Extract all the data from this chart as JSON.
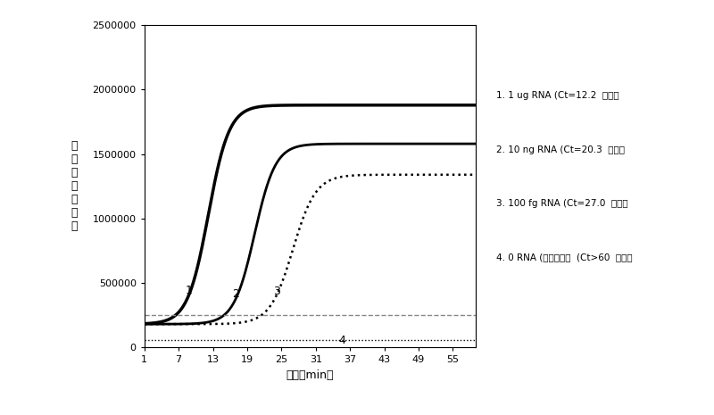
{
  "x_ticks": [
    1,
    7,
    13,
    19,
    25,
    31,
    37,
    43,
    49,
    55
  ],
  "x_min": 1,
  "x_max": 59,
  "y_min": 0,
  "y_max": 2500000,
  "y_ticks": [
    0,
    500000,
    1000000,
    1500000,
    2000000,
    2500000
  ],
  "ylabel": "相\n对\n荧\n光\n吸\n收\n值",
  "xlabel": "时间（min）",
  "legend": [
    "1. 1 ug RNA (Ct=12.2  分钟）",
    "2. 10 ng RNA (Ct=20.3  分钟）",
    "3. 100 fg RNA (Ct=27.0  分钟）",
    "4. 0 RNA (阴性对照）  (Ct>60  分钟）"
  ],
  "curve1_ct": 12.2,
  "curve1_baseline": 180000,
  "curve1_plateau": 1880000,
  "curve1_k": 0.55,
  "curve2_ct": 20.3,
  "curve2_baseline": 180000,
  "curve2_plateau": 1580000,
  "curve2_k": 0.55,
  "curve3_ct": 27.0,
  "curve3_baseline": 180000,
  "curve3_plateau": 1340000,
  "curve3_k": 0.5,
  "curve4_baseline": 60000,
  "threshold_y": 250000,
  "bg_color": "#ffffff",
  "curve1_color": "#000000",
  "curve2_color": "#000000",
  "curve3_color": "#000000",
  "curve4_color": "#000000",
  "threshold_color": "#888888"
}
